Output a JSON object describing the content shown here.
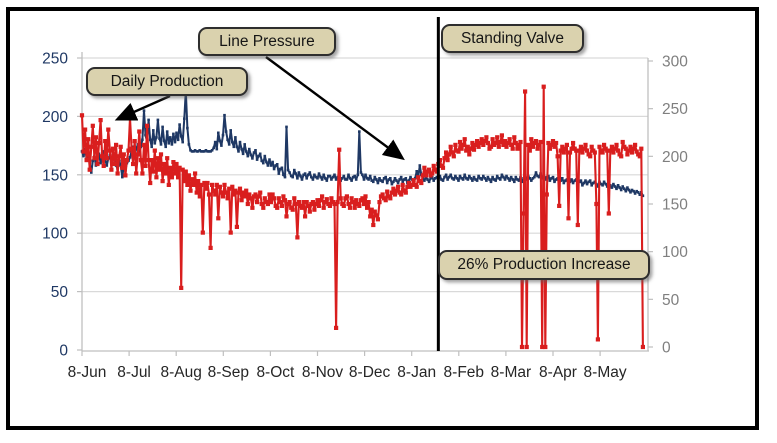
{
  "annotations": {
    "daily_production_label": "Daily Production",
    "line_pressure_label": "Line Pressure",
    "standing_valve_label": "Standing Valve",
    "production_increase_label": "26% Production Increase",
    "callout_fill": "#DAD2AE",
    "callout_border": "#2e2e2e"
  },
  "chart_data": {
    "type": "line",
    "title": "",
    "x_tick_labels": [
      "8-Jun",
      "8-Jul",
      "8-Aug",
      "8-Sep",
      "8-Oct",
      "8-Nov",
      "8-Dec",
      "8-Jan",
      "8-Feb",
      "8-Mar",
      "8-Apr",
      "8-May"
    ],
    "left_axis": {
      "min": 0,
      "max": 250,
      "tick_step": 50,
      "ticks": [
        0,
        50,
        100,
        150,
        200,
        250
      ],
      "label_color": "#1F3864",
      "series": "Line Pressure"
    },
    "right_axis": {
      "min": 0,
      "max": 300,
      "tick_step": 50,
      "ticks": [
        0,
        50,
        100,
        150,
        200,
        250,
        300
      ],
      "label_color": "#7F7F7F",
      "series": "Daily Production"
    },
    "x_label_color": "#262626",
    "grid": true,
    "gridline_color": "#D9D9D9",
    "axis_line_color": "#BFBFBF",
    "event_line": {
      "label": "Standing Valve",
      "day": 230,
      "color": "#000000"
    },
    "series": [
      {
        "name": "Line Pressure",
        "axis": "left",
        "color": "#1F3864",
        "marker": "square",
        "x_start_day": 0,
        "x_step_days": 1,
        "values": [
          170,
          166,
          172,
          164,
          168,
          160,
          152,
          162,
          166,
          158,
          164,
          168,
          160,
          166,
          170,
          163,
          158,
          164,
          167,
          160,
          163,
          167,
          158,
          155,
          162,
          158,
          148,
          158,
          154,
          160,
          162,
          165,
          170,
          174,
          167,
          172,
          176,
          169,
          174,
          180,
          205,
          184,
          178,
          197,
          180,
          174,
          188,
          177,
          182,
          197,
          181,
          176,
          191,
          179,
          174,
          187,
          177,
          182,
          176,
          185,
          178,
          186,
          180,
          193,
          183,
          178,
          198,
          222,
          190,
          176,
          171,
          170,
          170,
          171,
          170,
          170,
          171,
          170,
          170,
          170,
          171,
          170,
          170,
          170,
          171,
          173,
          178,
          172,
          186,
          179,
          175,
          184,
          201,
          187,
          180,
          176,
          188,
          178,
          174,
          182,
          174,
          170,
          178,
          172,
          168,
          176,
          170,
          166,
          172,
          167,
          164,
          169,
          171,
          163,
          166,
          168,
          162,
          160,
          166,
          161,
          158,
          163,
          158,
          161,
          155,
          158,
          159,
          151,
          155,
          156,
          150,
          148,
          191,
          154,
          152,
          149,
          148,
          154,
          151,
          147,
          152,
          149,
          146,
          150,
          151,
          147,
          150,
          152,
          148,
          146,
          150,
          148,
          147,
          151,
          148,
          146,
          150,
          147,
          145,
          149,
          149,
          146,
          148,
          150,
          146,
          148,
          150,
          145,
          147,
          149,
          146,
          146,
          150,
          147,
          145,
          148,
          149,
          146,
          150,
          187,
          152,
          150,
          146,
          150,
          147,
          146,
          149,
          145,
          144,
          148,
          146,
          143,
          147,
          145,
          144,
          147,
          148,
          143,
          146,
          147,
          142,
          144,
          147,
          145,
          143,
          146,
          148,
          144,
          146,
          147,
          143,
          145,
          148,
          146,
          144,
          147,
          153,
          148,
          158,
          150,
          147,
          145,
          148,
          146,
          144,
          147,
          148,
          145,
          147,
          148,
          146,
          149,
          146,
          145,
          148,
          150,
          146,
          148,
          150,
          147,
          146,
          149,
          147,
          145,
          149,
          147,
          146,
          150,
          147,
          146,
          149,
          147,
          145,
          148,
          146,
          145,
          149,
          147,
          146,
          149,
          147,
          145,
          148,
          146,
          144,
          148,
          146,
          145,
          149,
          147,
          146,
          150,
          148,
          146,
          149,
          147,
          145,
          148,
          146,
          144,
          148,
          146,
          145,
          148,
          144,
          147,
          150,
          146,
          149,
          147,
          145,
          147,
          148,
          152,
          149,
          148,
          151,
          147,
          150,
          146,
          148,
          149,
          145,
          147,
          148,
          144,
          146,
          147,
          143,
          145,
          147,
          143,
          145,
          146,
          142,
          144,
          146,
          143,
          145,
          146,
          142,
          144,
          145,
          141,
          143,
          145,
          142,
          144,
          145,
          141,
          143,
          144,
          142,
          140,
          144,
          142,
          141,
          144,
          142,
          140,
          143,
          141,
          139,
          142,
          140,
          138,
          141,
          139,
          137,
          140,
          138,
          136,
          139,
          137,
          135,
          137,
          136,
          134,
          136,
          135,
          133,
          135,
          132
        ]
      },
      {
        "name": "Daily Production",
        "axis": "right",
        "color": "#D91E1E",
        "marker": "square",
        "x_start_day": 0,
        "x_step_days": 1,
        "values": [
          243,
          205,
          228,
          196,
          218,
          186,
          210,
          232,
          198,
          220,
          192,
          214,
          238,
          200,
          190,
          216,
          198,
          228,
          206,
          186,
          208,
          192,
          212,
          182,
          200,
          210,
          188,
          202,
          180,
          196,
          206,
          240,
          208,
          192,
          216,
          182,
          202,
          226,
          196,
          182,
          212,
          190,
          232,
          196,
          172,
          196,
          184,
          206,
          178,
          198,
          186,
          202,
          174,
          192,
          182,
          198,
          170,
          188,
          178,
          194,
          182,
          192,
          178,
          188,
          62,
          186,
          174,
          184,
          170,
          180,
          164,
          176,
          170,
          182,
          162,
          174,
          158,
          170,
          120,
          172,
          166,
          172,
          160,
          104,
          170,
          164,
          160,
          170,
          135,
          168,
          162,
          158,
          170,
          162,
          156,
          166,
          120,
          168,
          160,
          164,
          126,
          162,
          166,
          154,
          162,
          158,
          164,
          150,
          160,
          156,
          146,
          158,
          160,
          152,
          158,
          162,
          150,
          146,
          156,
          152,
          150,
          160,
          152,
          160,
          156,
          148,
          146,
          156,
          152,
          148,
          158,
          154,
          137,
          150,
          152,
          146,
          144,
          156,
          150,
          115,
          152,
          148,
          146,
          152,
          137,
          152,
          148,
          142,
          150,
          152,
          144,
          150,
          154,
          148,
          154,
          158,
          146,
          152,
          155,
          150,
          148,
          156,
          152,
          150,
          20,
          152,
          207,
          156,
          150,
          148,
          156,
          158,
          150,
          146,
          156,
          152,
          146,
          154,
          150,
          148,
          154,
          156,
          150,
          158,
          146,
          152,
          137,
          144,
          128,
          142,
          138,
          134,
          152,
          158,
          160,
          156,
          154,
          163,
          158,
          156,
          162,
          166,
          160,
          164,
          168,
          162,
          160,
          170,
          164,
          162,
          168,
          172,
          168,
          170,
          175,
          170,
          168,
          178,
          174,
          172,
          180,
          188,
          180,
          184,
          186,
          180,
          182,
          190,
          186,
          184,
          192,
          196,
          190,
          188,
          198,
          204,
          196,
          202,
          210,
          204,
          200,
          212,
          206,
          205,
          215,
          208,
          212,
          218,
          206,
          210,
          202,
          208,
          214,
          207,
          212,
          216,
          210,
          214,
          218,
          212,
          216,
          220,
          214,
          208,
          210,
          218,
          212,
          214,
          220,
          210,
          215,
          222,
          212,
          216,
          210,
          214,
          218,
          212,
          208,
          220,
          214,
          208,
          212,
          215,
          0,
          140,
          268,
          0,
          212,
          206,
          218,
          210,
          214,
          216,
          208,
          212,
          215,
          0,
          273,
          0,
          160,
          214,
          208,
          212,
          216,
          210,
          214,
          200,
          148,
          206,
          210,
          204,
          208,
          212,
          135,
          204,
          208,
          214,
          208,
          206,
          128,
          206,
          210,
          204,
          208,
          212,
          206,
          202,
          200,
          210,
          206,
          204,
          150,
          8,
          210,
          206,
          204,
          212,
          208,
          206,
          140,
          206,
          210,
          204,
          208,
          212,
          206,
          202,
          200,
          215,
          210,
          208,
          202,
          206,
          210,
          204,
          208,
          212,
          205,
          202,
          200,
          208,
          0
        ]
      }
    ]
  }
}
